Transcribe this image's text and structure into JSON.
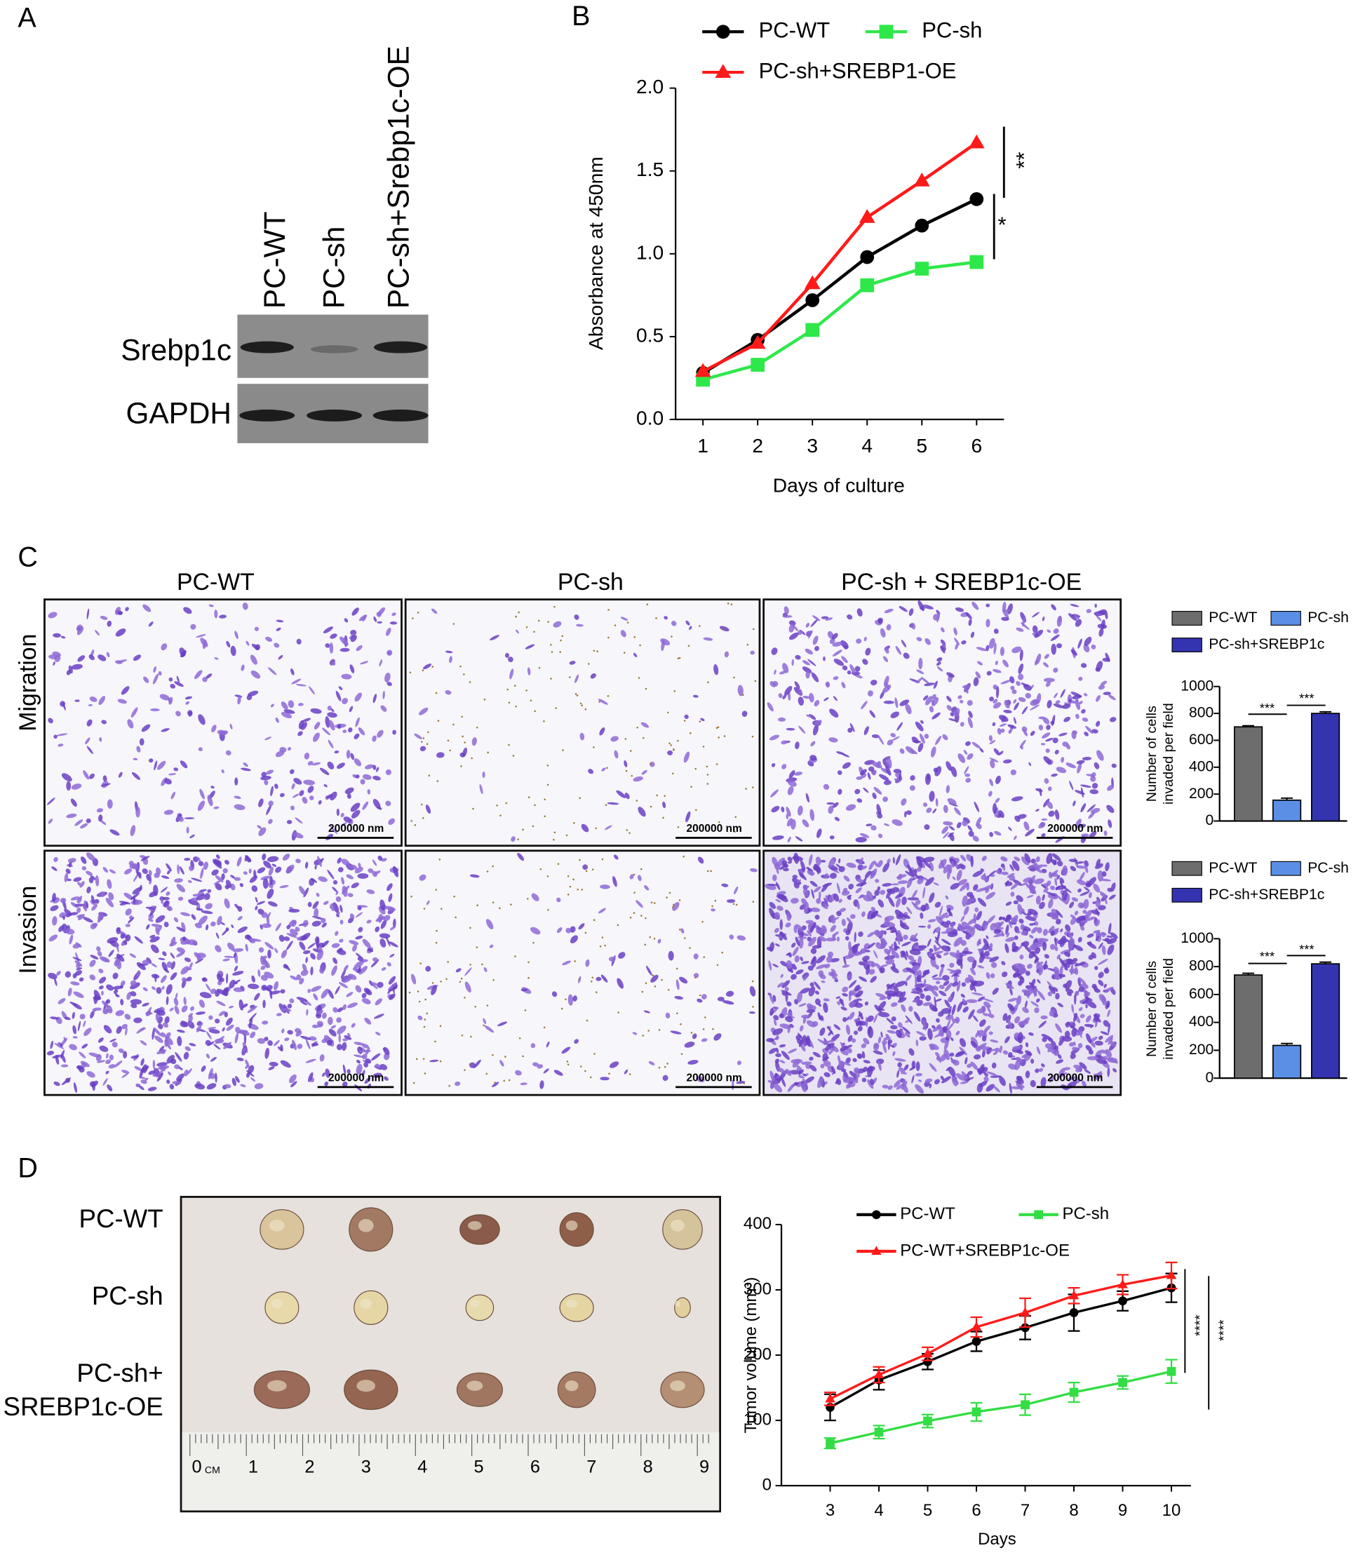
{
  "panel_labels": [
    "A",
    "B",
    "C",
    "D"
  ],
  "blot": {
    "lanes": [
      "PC-WT",
      "PC-sh",
      "PC-sh+Srebp1c-OE"
    ],
    "rows": [
      "Srebp1c",
      "GAPDH"
    ]
  },
  "micrographs": {
    "columns": [
      "PC-WT",
      "PC-sh",
      "PC-sh + SREBP1c-OE"
    ],
    "rows": [
      "Migration",
      "Invasion"
    ],
    "scale_bar": "200000 nm"
  },
  "photo": {
    "rows": [
      [
        "PC-WT"
      ],
      [
        "PC-sh"
      ],
      [
        "PC-sh+",
        "SREBP1c-OE"
      ]
    ],
    "ruler": {
      "labels": [
        "0",
        "1",
        "2",
        "3",
        "4",
        "5",
        "6",
        "7",
        "8",
        "9"
      ],
      "unit": "CM"
    }
  },
  "chart_data": [
    {
      "type": "line",
      "xlabel": "Days of culture",
      "ylabel": "Absorbance at 450nm",
      "x": [
        1,
        2,
        3,
        4,
        5,
        6
      ],
      "xlim": [
        0.5,
        6.5
      ],
      "xticks": [
        1,
        2,
        3,
        4,
        5,
        6
      ],
      "ylim": [
        0,
        2
      ],
      "yticks": [
        {
          "value": 0,
          "label": "0.0"
        },
        {
          "value": 0.5,
          "label": "0.5"
        },
        {
          "value": 1,
          "label": "1.0"
        },
        {
          "value": 1.5,
          "label": "1.5"
        },
        {
          "value": 2,
          "label": "2.0"
        }
      ],
      "series": [
        {
          "name": "PC-WT",
          "color": "#000000",
          "marker": "circle",
          "values": [
            0.28,
            0.48,
            0.72,
            0.98,
            1.17,
            1.33
          ]
        },
        {
          "name": "PC-sh",
          "color": "#2ee84a",
          "marker": "square",
          "values": [
            0.24,
            0.33,
            0.54,
            0.81,
            0.91,
            0.95
          ]
        },
        {
          "name": "PC-sh+SREBP1-OE",
          "color": "#ff1a1a",
          "marker": "triangle",
          "values": [
            0.29,
            0.46,
            0.82,
            1.22,
            1.44,
            1.67
          ]
        }
      ],
      "annotations": [
        "**",
        "*"
      ]
    },
    {
      "type": "bar",
      "ylabel_lines": [
        "Number of cells",
        "invaded per field"
      ],
      "ylim": [
        0,
        1000
      ],
      "yticks": [
        0,
        200,
        400,
        600,
        800,
        1000
      ],
      "series": [
        {
          "name": "PC-WT",
          "color": "#6d6d6d",
          "values": [
            700
          ],
          "errors": [
            8
          ]
        },
        {
          "name": "PC-sh",
          "color": "#5b8fe6",
          "values": [
            155
          ],
          "errors": [
            15
          ]
        },
        {
          "name": "PC-sh+SREBP1c",
          "color": "#3434b0",
          "values": [
            800
          ],
          "errors": [
            12
          ]
        }
      ],
      "annotations": [
        "***",
        "***"
      ]
    },
    {
      "type": "bar",
      "ylabel_lines": [
        "Number of cells",
        "invaded per field"
      ],
      "ylim": [
        0,
        1000
      ],
      "yticks": [
        0,
        200,
        400,
        600,
        800,
        1000
      ],
      "series": [
        {
          "name": "PC-WT",
          "color": "#6d6d6d",
          "values": [
            740
          ],
          "errors": [
            12
          ]
        },
        {
          "name": "PC-sh",
          "color": "#5b8fe6",
          "values": [
            235
          ],
          "errors": [
            14
          ]
        },
        {
          "name": "PC-sh+SREBP1c",
          "color": "#3434b0",
          "values": [
            820
          ],
          "errors": [
            12
          ]
        }
      ],
      "annotations": [
        "***",
        "***"
      ]
    },
    {
      "type": "line",
      "xlabel": "Days",
      "ylabel": "Tumor volume (mm³)",
      "x": [
        3,
        4,
        5,
        6,
        7,
        8,
        9,
        10
      ],
      "xlim": [
        2,
        10.4
      ],
      "xticks": [
        3,
        4,
        5,
        6,
        7,
        8,
        9,
        10
      ],
      "ylim": [
        0,
        400
      ],
      "yticks": [
        0,
        100,
        200,
        300,
        400
      ],
      "series": [
        {
          "name": "PC-WT",
          "color": "#000000",
          "marker": "circle",
          "values": [
            120,
            162,
            190,
            221,
            242,
            265,
            283,
            303
          ],
          "errors": [
            20,
            15,
            12,
            15,
            18,
            28,
            15,
            22
          ]
        },
        {
          "name": "PC-sh",
          "color": "#33dd44",
          "marker": "square",
          "values": [
            65,
            82,
            99,
            113,
            124,
            143,
            158,
            175
          ],
          "errors": [
            8,
            10,
            10,
            14,
            16,
            15,
            10,
            18
          ]
        },
        {
          "name": "PC-WT+SREBP1c-OE",
          "color": "#ff1a1a",
          "marker": "triangle",
          "values": [
            133,
            170,
            202,
            243,
            265,
            291,
            308,
            322
          ],
          "errors": [
            10,
            12,
            10,
            15,
            22,
            12,
            15,
            20
          ]
        }
      ],
      "annotations": [
        "****",
        "****"
      ]
    }
  ]
}
